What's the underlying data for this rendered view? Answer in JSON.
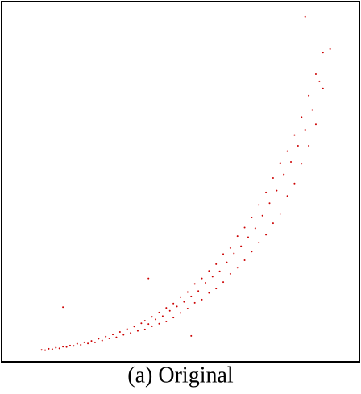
{
  "chart_data": {
    "type": "scatter",
    "title": "(a) Original",
    "color": "#cc0000",
    "xlim": [
      0,
      100
    ],
    "ylim": [
      0,
      100
    ],
    "x": [
      11,
      12,
      13,
      14,
      15,
      16,
      17,
      18,
      19,
      20,
      21,
      22,
      23,
      24,
      25,
      26,
      27,
      28,
      29,
      30,
      31,
      32,
      33,
      34,
      35,
      36,
      37,
      38,
      39,
      40,
      40,
      41,
      42,
      42,
      43,
      44,
      44,
      45,
      46,
      46,
      47,
      48,
      48,
      49,
      50,
      50,
      51,
      52,
      52,
      53,
      54,
      54,
      55,
      56,
      56,
      57,
      58,
      58,
      59,
      60,
      60,
      61,
      62,
      62,
      63,
      64,
      64,
      65,
      66,
      66,
      67,
      68,
      68,
      69,
      70,
      70,
      71,
      72,
      72,
      73,
      74,
      74,
      75,
      76,
      76,
      77,
      78,
      78,
      79,
      80,
      80,
      81,
      82,
      82,
      83,
      84,
      84,
      85,
      86,
      86,
      87,
      88,
      88,
      89,
      90,
      90,
      85,
      92,
      41,
      53,
      17
    ],
    "values": [
      3.1,
      3.0,
      3.4,
      3.3,
      3.7,
      3.5,
      4.0,
      3.9,
      4.3,
      4.2,
      4.8,
      4.5,
      5.2,
      4.9,
      5.6,
      5.2,
      6.2,
      5.7,
      6.8,
      6.3,
      7.4,
      6.6,
      8.1,
      7.3,
      8.9,
      7.8,
      9.6,
      8.4,
      10.5,
      11.2,
      8.8,
      10.3,
      12.3,
      9.7,
      11.6,
      13.5,
      10.4,
      12.5,
      14.8,
      11.0,
      14.0,
      16.0,
      12.1,
      15.2,
      17.8,
      13.4,
      16.5,
      19.2,
      14.6,
      18.0,
      21.5,
      16.2,
      19.5,
      23.0,
      17.1,
      21.8,
      25.1,
      19.0,
      23.5,
      27.0,
      20.2,
      25.0,
      29.8,
      22.0,
      27.5,
      31.5,
      24.3,
      30.0,
      34.8,
      26.0,
      32.0,
      37.2,
      28.1,
      34.5,
      40.0,
      30.5,
      37.0,
      43.5,
      33.0,
      40.5,
      47.0,
      35.2,
      44.0,
      51.0,
      38.4,
      47.5,
      55.2,
      41.0,
      52.0,
      58.5,
      46.0,
      55.5,
      63.0,
      49.5,
      60.0,
      68.0,
      55.0,
      64.5,
      74.0,
      60.0,
      70.0,
      80.0,
      66.0,
      78.0,
      86.0,
      76.0,
      96,
      87,
      23,
      7,
      15
    ]
  }
}
